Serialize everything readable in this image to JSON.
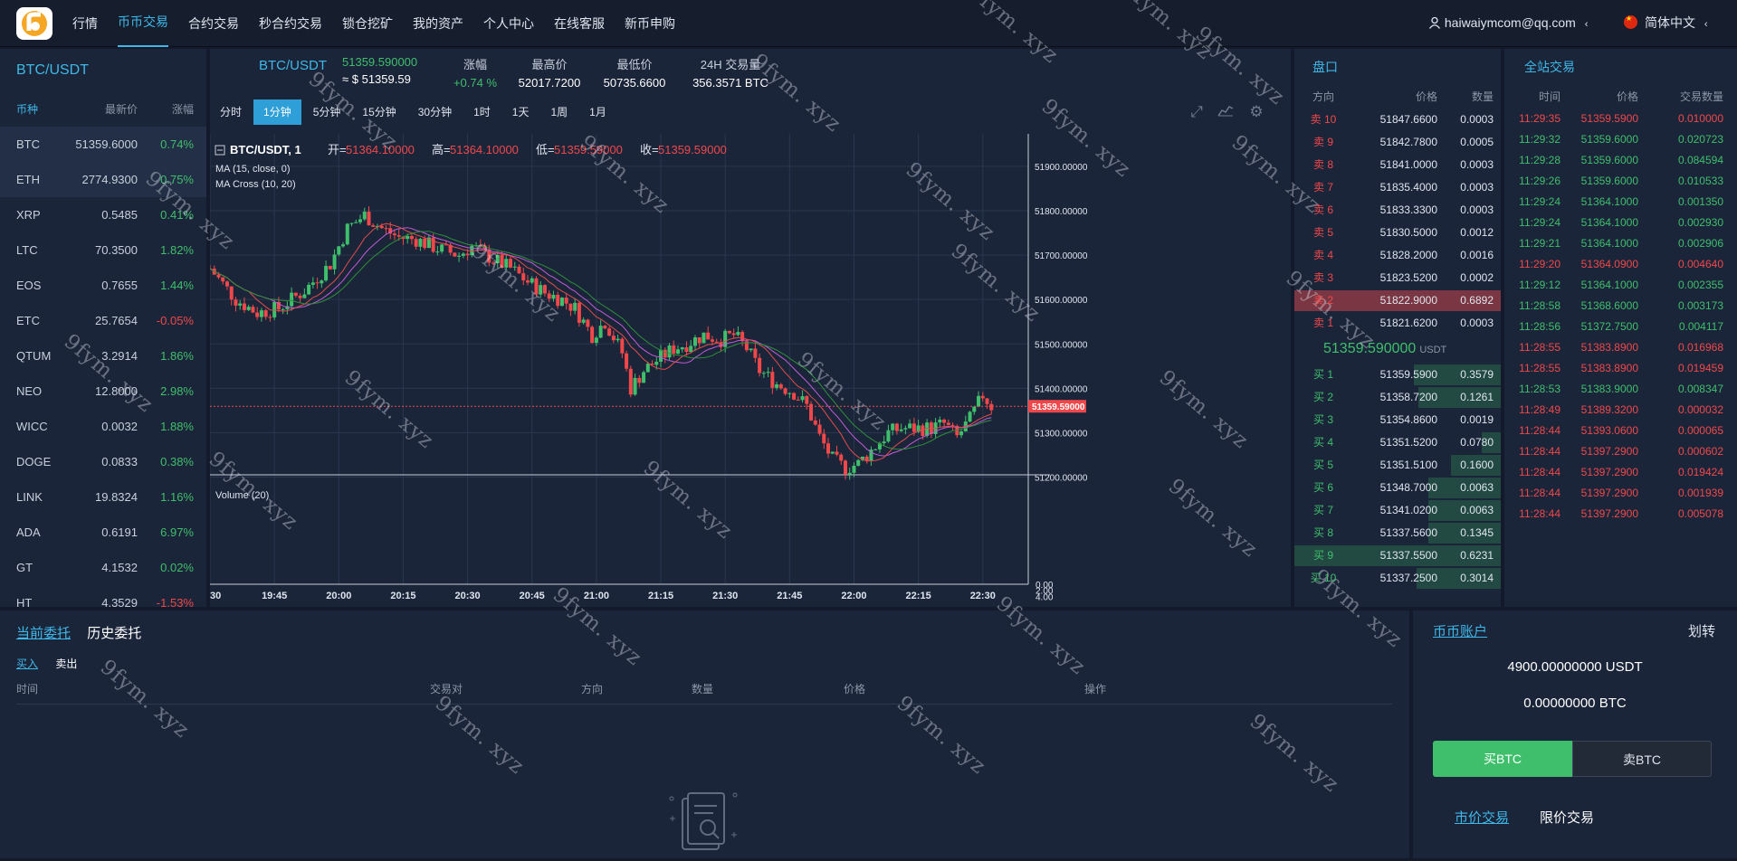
{
  "nav": {
    "items": [
      "行情",
      "币币交易",
      "合约交易",
      "秒合约交易",
      "锁仓挖矿",
      "我的资产",
      "个人中心",
      "在线客服",
      "新币申购"
    ],
    "active_index": 1
  },
  "user": {
    "email": "haiwaiymcom@qq.com",
    "lang": "简体中文"
  },
  "market": {
    "title": "BTC/USDT",
    "headers": [
      "币种",
      "最新价",
      "涨幅"
    ],
    "rows": [
      {
        "coin": "BTC",
        "price": "51359.6000",
        "change": "0.74%"
      },
      {
        "coin": "ETH",
        "price": "2774.9300",
        "change": "0.75%"
      },
      {
        "coin": "XRP",
        "price": "0.5485",
        "change": "0.41%"
      },
      {
        "coin": "LTC",
        "price": "70.3500",
        "change": "1.82%"
      },
      {
        "coin": "EOS",
        "price": "0.7655",
        "change": "1.44%"
      },
      {
        "coin": "ETC",
        "price": "25.7654",
        "change": "-0.05%"
      },
      {
        "coin": "QTUM",
        "price": "3.2914",
        "change": "1.86%"
      },
      {
        "coin": "NEO",
        "price": "12.8000",
        "change": "2.98%"
      },
      {
        "coin": "WICC",
        "price": "0.0032",
        "change": "1.88%"
      },
      {
        "coin": "DOGE",
        "price": "0.0833",
        "change": "0.38%"
      },
      {
        "coin": "LINK",
        "price": "19.8324",
        "change": "1.16%"
      },
      {
        "coin": "ADA",
        "price": "0.6191",
        "change": "6.97%"
      },
      {
        "coin": "GT",
        "price": "4.1532",
        "change": "0.02%"
      },
      {
        "coin": "HT",
        "price": "4.3529",
        "change": "-1.53%"
      }
    ]
  },
  "ticker": {
    "pair": "BTC/USDT",
    "price": "51359.590000",
    "price_usd": "≈ $ 51359.59",
    "change_label": "涨幅",
    "change": "+0.74 %",
    "high_label": "最高价",
    "high": "52017.7200",
    "low_label": "最低价",
    "low": "50735.6600",
    "vol_label": "24H 交易量",
    "vol": "356.3571 BTC"
  },
  "periods": {
    "items": [
      "分时",
      "1分钟",
      "5分钟",
      "15分钟",
      "30分钟",
      "1时",
      "1天",
      "1周",
      "1月"
    ],
    "active_index": 1
  },
  "chart_data": {
    "type": "candlestick",
    "title": "BTC/USDT, 1",
    "ohlc_legend": {
      "open_label": "开=",
      "open": "51364.10000",
      "high_label": "高=",
      "high": "51364.10000",
      "low_label": "低=",
      "low": "51359.59000",
      "close_label": "收=",
      "close": "51359.59000"
    },
    "indicators": [
      "MA (15, close, 0)",
      "MA Cross (10, 20)"
    ],
    "volume_label": "Volume (20)",
    "y_ticks": [
      "51900.00000",
      "51800.00000",
      "51700.00000",
      "51600.00000",
      "51500.00000",
      "51400.00000",
      "51300.00000",
      "51200.00000"
    ],
    "y_range": [
      51085,
      51965
    ],
    "last_price": "51359.59000",
    "last_value": 51359.59,
    "vol_ticks": [
      "4.00",
      "2.00",
      "0.00"
    ],
    "vol_range": [
      0,
      5.4
    ],
    "x_ticks": [
      "30",
      "19:45",
      "20:00",
      "20:15",
      "20:30",
      "20:45",
      "21:00",
      "21:15",
      "21:30",
      "21:45",
      "22:00",
      "22:15",
      "22:30"
    ],
    "x_range_minutes": [
      1170,
      1353
    ],
    "x_tick_minutes": [
      1170,
      1185,
      1200,
      1215,
      1230,
      1245,
      1260,
      1275,
      1290,
      1305,
      1320,
      1335,
      1350
    ],
    "close_path": [
      [
        1170,
        51670
      ],
      [
        1176,
        51600
      ],
      [
        1181,
        51570
      ],
      [
        1186,
        51580
      ],
      [
        1192,
        51620
      ],
      [
        1198,
        51680
      ],
      [
        1202,
        51760
      ],
      [
        1206,
        51790
      ],
      [
        1210,
        51760
      ],
      [
        1214,
        51740
      ],
      [
        1218,
        51735
      ],
      [
        1223,
        51715
      ],
      [
        1228,
        51700
      ],
      [
        1231,
        51720
      ],
      [
        1236,
        51690
      ],
      [
        1240,
        51670
      ],
      [
        1244,
        51640
      ],
      [
        1248,
        51615
      ],
      [
        1252,
        51600
      ],
      [
        1255,
        51580
      ],
      [
        1259,
        51520
      ],
      [
        1262,
        51550
      ],
      [
        1266,
        51480
      ],
      [
        1268,
        51400
      ],
      [
        1271,
        51440
      ],
      [
        1275,
        51470
      ],
      [
        1278,
        51490
      ],
      [
        1281,
        51500
      ],
      [
        1285,
        51520
      ],
      [
        1289,
        51510
      ],
      [
        1292,
        51520
      ],
      [
        1295,
        51490
      ],
      [
        1298,
        51440
      ],
      [
        1302,
        51410
      ],
      [
        1306,
        51390
      ],
      [
        1309,
        51360
      ],
      [
        1312,
        51290
      ],
      [
        1315,
        51240
      ],
      [
        1318,
        51220
      ],
      [
        1321,
        51230
      ],
      [
        1325,
        51270
      ],
      [
        1328,
        51300
      ],
      [
        1331,
        51310
      ],
      [
        1335,
        51310
      ],
      [
        1338,
        51310
      ],
      [
        1341,
        51320
      ],
      [
        1344,
        51290
      ],
      [
        1347,
        51330
      ],
      [
        1350,
        51385
      ],
      [
        1352,
        51360
      ]
    ],
    "volume_spikes": [
      [
        1207,
        4.1
      ],
      [
        1240,
        2.6
      ],
      [
        1266,
        5.1
      ],
      [
        1270,
        2.2
      ],
      [
        1301,
        3.1
      ],
      [
        1318,
        2.9
      ],
      [
        1330,
        2.7
      ],
      [
        1346,
        3.0
      ]
    ]
  },
  "orderbook": {
    "title": "盘口",
    "headers": [
      "方向",
      "价格",
      "数量"
    ],
    "asks": [
      {
        "side": "卖 10",
        "price": "51847.6600",
        "qty": "0.0003",
        "depth": 0
      },
      {
        "side": "卖 9",
        "price": "51842.7800",
        "qty": "0.0005",
        "depth": 0
      },
      {
        "side": "卖 8",
        "price": "51841.0000",
        "qty": "0.0003",
        "depth": 0
      },
      {
        "side": "卖 7",
        "price": "51835.4000",
        "qty": "0.0003",
        "depth": 0
      },
      {
        "side": "卖 6",
        "price": "51833.3300",
        "qty": "0.0003",
        "depth": 0
      },
      {
        "side": "卖 5",
        "price": "51830.5000",
        "qty": "0.0012",
        "depth": 0
      },
      {
        "side": "卖 4",
        "price": "51828.2000",
        "qty": "0.0016",
        "depth": 0
      },
      {
        "side": "卖 3",
        "price": "51823.5200",
        "qty": "0.0002",
        "depth": 0
      },
      {
        "side": "卖 2",
        "price": "51822.9000",
        "qty": "0.6892",
        "depth": 1.0
      },
      {
        "side": "卖 1",
        "price": "51821.6200",
        "qty": "0.0003",
        "depth": 0
      }
    ],
    "last_price": "51359.590000",
    "last_unit": "USDT",
    "bids": [
      {
        "side": "买 1",
        "price": "51359.5900",
        "qty": "0.3579",
        "depth": 0.42
      },
      {
        "side": "买 2",
        "price": "51358.7200",
        "qty": "0.1261",
        "depth": 0.4
      },
      {
        "side": "买 3",
        "price": "51354.8600",
        "qty": "0.0019",
        "depth": 0
      },
      {
        "side": "买 4",
        "price": "51351.5200",
        "qty": "0.0780",
        "depth": 0.09
      },
      {
        "side": "买 5",
        "price": "51351.5100",
        "qty": "0.1600",
        "depth": 0.24
      },
      {
        "side": "买 6",
        "price": "51348.7000",
        "qty": "0.0063",
        "depth": 0.35
      },
      {
        "side": "买 7",
        "price": "51341.0200",
        "qty": "0.0063",
        "depth": 0.35
      },
      {
        "side": "买 8",
        "price": "51337.5600",
        "qty": "0.1345",
        "depth": 0.35
      },
      {
        "side": "买 9",
        "price": "51337.5500",
        "qty": "0.6231",
        "depth": 1.0
      },
      {
        "side": "买 10",
        "price": "51337.2500",
        "qty": "0.3014",
        "depth": 0.41
      }
    ]
  },
  "trades": {
    "title": "全站交易",
    "headers": [
      "时间",
      "价格",
      "交易数量"
    ],
    "rows": [
      {
        "time": "11:29:35",
        "price": "51359.5900",
        "qty": "0.010000",
        "dir": "down"
      },
      {
        "time": "11:29:32",
        "price": "51359.6000",
        "qty": "0.020723",
        "dir": "up"
      },
      {
        "time": "11:29:28",
        "price": "51359.6000",
        "qty": "0.084594",
        "dir": "up"
      },
      {
        "time": "11:29:26",
        "price": "51359.6000",
        "qty": "0.010533",
        "dir": "up"
      },
      {
        "time": "11:29:24",
        "price": "51364.1000",
        "qty": "0.001350",
        "dir": "up"
      },
      {
        "time": "11:29:24",
        "price": "51364.1000",
        "qty": "0.002930",
        "dir": "up"
      },
      {
        "time": "11:29:21",
        "price": "51364.1000",
        "qty": "0.002906",
        "dir": "up"
      },
      {
        "time": "11:29:20",
        "price": "51364.0900",
        "qty": "0.004640",
        "dir": "down"
      },
      {
        "time": "11:29:12",
        "price": "51364.1000",
        "qty": "0.002355",
        "dir": "up"
      },
      {
        "time": "11:28:58",
        "price": "51368.6000",
        "qty": "0.003173",
        "dir": "up"
      },
      {
        "time": "11:28:56",
        "price": "51372.7500",
        "qty": "0.004117",
        "dir": "up"
      },
      {
        "time": "11:28:55",
        "price": "51383.8900",
        "qty": "0.016968",
        "dir": "down"
      },
      {
        "time": "11:28:55",
        "price": "51383.8900",
        "qty": "0.019459",
        "dir": "down"
      },
      {
        "time": "11:28:53",
        "price": "51383.9000",
        "qty": "0.008347",
        "dir": "up"
      },
      {
        "time": "11:28:49",
        "price": "51389.3200",
        "qty": "0.000032",
        "dir": "down"
      },
      {
        "time": "11:28:44",
        "price": "51393.0600",
        "qty": "0.000065",
        "dir": "down"
      },
      {
        "time": "11:28:44",
        "price": "51397.2900",
        "qty": "0.000602",
        "dir": "down"
      },
      {
        "time": "11:28:44",
        "price": "51397.2900",
        "qty": "0.019424",
        "dir": "down"
      },
      {
        "time": "11:28:44",
        "price": "51397.2900",
        "qty": "0.001939",
        "dir": "down"
      },
      {
        "time": "11:28:44",
        "price": "51397.2900",
        "qty": "0.005078",
        "dir": "down"
      }
    ]
  },
  "orders": {
    "tab_current": "当前委托",
    "tab_history": "历史委托",
    "side_buy": "买入",
    "side_sell": "卖出",
    "headers": [
      "时间",
      "交易对",
      "方向",
      "数量",
      "价格",
      "操作"
    ]
  },
  "account": {
    "tab": "币币账户",
    "transfer": "划转",
    "usdt_balance": "4900.00000000 USDT",
    "btc_balance": "0.00000000 BTC",
    "buy_label": "买BTC",
    "sell_label": "卖BTC",
    "market_tab": "市价交易",
    "limit_tab": "限价交易"
  },
  "watermark": "9fym. xyz",
  "colors": {
    "accent": "#3fb8e8",
    "up": "#3fbf6c",
    "down": "#f0484a",
    "bg": "#1b2539"
  }
}
